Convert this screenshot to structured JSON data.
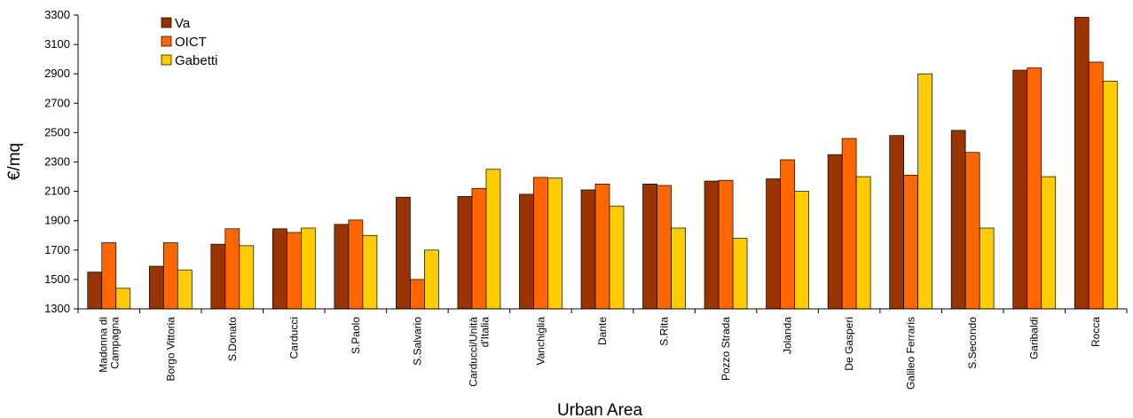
{
  "chart_data": {
    "type": "bar",
    "title": "",
    "xlabel": "Urban Area",
    "ylabel": "€/mq",
    "ylim": [
      1300,
      3300
    ],
    "yticks": [
      1300,
      1500,
      1700,
      1900,
      2100,
      2300,
      2500,
      2700,
      2900,
      3100,
      3300
    ],
    "grid": false,
    "legend_position": "top-left",
    "categories": [
      [
        "Madonna di",
        "Campagna"
      ],
      [
        "Borgo Vittoria"
      ],
      [
        "S.Donato"
      ],
      [
        "Carducci"
      ],
      [
        "S.Paolo"
      ],
      [
        "S.Salvario"
      ],
      [
        "Carducci/Unità",
        "d'Italia"
      ],
      [
        "Vanchiglia"
      ],
      [
        "Dante"
      ],
      [
        "S.Rita"
      ],
      [
        "Pozzo Strada"
      ],
      [
        "Jolanda"
      ],
      [
        "De Gasperi"
      ],
      [
        "Galileo Ferraris"
      ],
      [
        "S.Secondo"
      ],
      [
        "Garibaldi"
      ],
      [
        "Rocca"
      ]
    ],
    "series": [
      {
        "name": "Va",
        "color": "#993300",
        "values": [
          1550,
          1590,
          1740,
          1845,
          1875,
          2060,
          2065,
          2080,
          2110,
          2150,
          2170,
          2185,
          2350,
          2480,
          2515,
          2925,
          3285
        ]
      },
      {
        "name": "OICT",
        "color": "#FF6600",
        "values": [
          1750,
          1750,
          1845,
          1820,
          1905,
          1500,
          2120,
          2195,
          2150,
          2140,
          2175,
          2315,
          2460,
          2210,
          2365,
          2940,
          2980
        ]
      },
      {
        "name": "Gabetti",
        "color": "#FFCC00",
        "values": [
          1440,
          1565,
          1730,
          1850,
          1800,
          1700,
          2250,
          2190,
          2000,
          1850,
          1780,
          2100,
          2200,
          2900,
          1850,
          2200,
          2850
        ]
      }
    ]
  }
}
